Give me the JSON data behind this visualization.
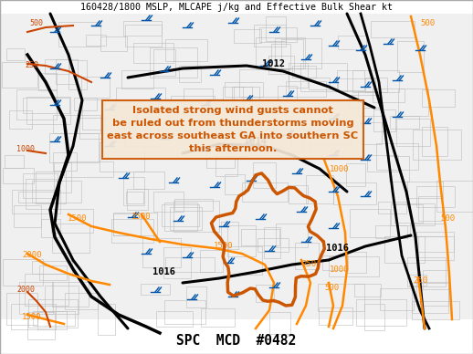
{
  "title_top": "160428/1800 MSLP, MLCAPE j/kg and Effective Bulk Shear kt",
  "title_bottom": "SPC  MCD  #0482",
  "background_color": "#ffffff",
  "map_bg": "#e8e8e8",
  "annotation_text": "Isolated strong wind gusts cannot\nbe ruled out from thunderstorms moving\neast across southeast GA into southern SC\nthis afternoon.",
  "annotation_color": "#cc5500",
  "annotation_box_edge": "#cc5500",
  "annotation_box_bg": "#f5e8d8",
  "isobar_color": "#000000",
  "cape_color": "#ff8c00",
  "shear_color": "#cc3300",
  "wind_barb_color": "#0055aa",
  "highlight_color": "#cc5500",
  "county_color": "#cccccc",
  "state_color": "#000000"
}
